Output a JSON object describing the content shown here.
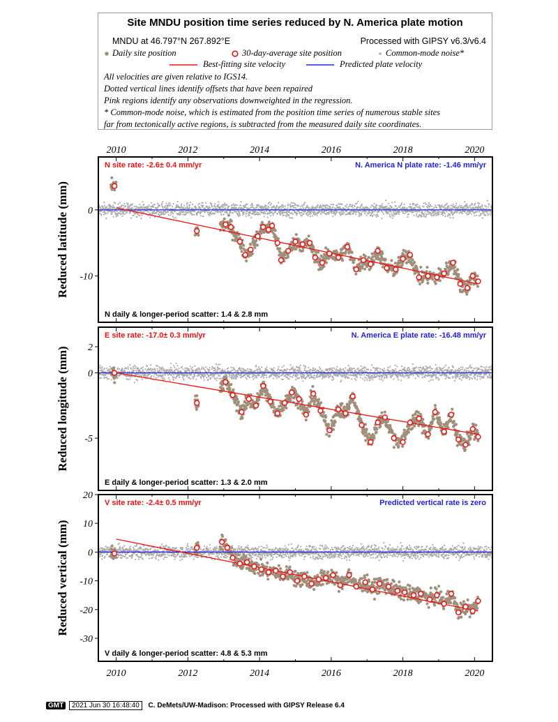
{
  "legend": {
    "title": "Site MNDU position time series reduced by N. America plate motion",
    "site_location": "MNDU at 46.797°N 267.892°E",
    "processing": "Processed with GIPSY v6.3/v6.4",
    "daily_label": "Daily site position",
    "avg_label": "30-day-average site position",
    "noise_label": "Common-mode noise*",
    "best_fit_label": "Best-fitting site velocity",
    "plate_label": "Predicted plate velocity",
    "notes": [
      "All velocities are given relative to IGS14.",
      "Dotted vertical lines identify offsets that have been repaired",
      "Pink regions identify any observations downweighted in the regression.",
      "* Common-mode noise, which is estimated from the position time series of numerous stable sites",
      "far from tectonically active regions, is subtracted from the measured daily site coordinates."
    ],
    "colors": {
      "daily": "#a08f7a",
      "avg": "#ee1111",
      "noise": "#aaaaaa",
      "fit": "#ee1111",
      "plate": "#2222dd"
    }
  },
  "footer": {
    "logo": "GMT",
    "date": "2021 Jun 30 16:48:40",
    "credit": "C. DeMets/UW-Madison: Processed with GIPSY Release 6.4"
  },
  "chart_data": [
    {
      "type": "scatter",
      "component": "N",
      "ylabel": "Reduced latitude (mm)",
      "xlim": [
        2009.5,
        2020.5
      ],
      "ylim": [
        -17,
        8
      ],
      "x_ticks": [
        "2010",
        "2012",
        "2014",
        "2016",
        "2018",
        "2020"
      ],
      "y_ticks": [
        0,
        -10
      ],
      "site_rate_text": "N site rate:  -2.6± 0.4 mm/yr",
      "plate_rate_text": "N. America N plate rate: -1.46 mm/yr",
      "scatter_text": "N daily & longer-period scatter:   1.4 &   2.8 mm",
      "best_fit_line": [
        [
          2010.0,
          0.3
        ],
        [
          2020.1,
          -11.2
        ]
      ],
      "plate_line_y": 0,
      "avg_points": [
        [
          2009.95,
          3.6
        ],
        [
          2012.25,
          -3.2
        ],
        [
          2013.05,
          -2.2
        ],
        [
          2013.2,
          -2.6
        ],
        [
          2013.45,
          -4.8
        ],
        [
          2013.6,
          -6.8
        ],
        [
          2013.75,
          -6.0
        ],
        [
          2013.95,
          -4.0
        ],
        [
          2014.1,
          -2.6
        ],
        [
          2014.25,
          -3.0
        ],
        [
          2014.35,
          -2.4
        ],
        [
          2014.5,
          -5.0
        ],
        [
          2014.6,
          -7.6
        ],
        [
          2014.8,
          -6.2
        ],
        [
          2015.0,
          -4.8
        ],
        [
          2015.2,
          -5.2
        ],
        [
          2015.4,
          -5.0
        ],
        [
          2015.55,
          -7.2
        ],
        [
          2015.75,
          -8.0
        ],
        [
          2015.95,
          -6.6
        ],
        [
          2016.2,
          -7.2
        ],
        [
          2016.45,
          -5.6
        ],
        [
          2016.7,
          -9.0
        ],
        [
          2016.9,
          -7.6
        ],
        [
          2017.1,
          -8.2
        ],
        [
          2017.3,
          -6.2
        ],
        [
          2017.55,
          -8.8
        ],
        [
          2017.8,
          -9.0
        ],
        [
          2018.0,
          -7.4
        ],
        [
          2018.2,
          -6.8
        ],
        [
          2018.45,
          -10.2
        ],
        [
          2018.7,
          -10.0
        ],
        [
          2018.95,
          -10.2
        ],
        [
          2019.15,
          -9.6
        ],
        [
          2019.4,
          -8.0
        ],
        [
          2019.6,
          -11.2
        ],
        [
          2019.8,
          -11.8
        ],
        [
          2019.95,
          -10.0
        ],
        [
          2020.1,
          -10.8
        ]
      ]
    },
    {
      "type": "scatter",
      "component": "E",
      "ylabel": "Reduced longitude (mm)",
      "xlim": [
        2009.5,
        2020.5
      ],
      "ylim": [
        -9,
        3.5
      ],
      "x_ticks": [
        "2010",
        "2012",
        "2014",
        "2016",
        "2018",
        "2020"
      ],
      "y_ticks": [
        2,
        0,
        -5
      ],
      "site_rate_text": "E site rate:  -17.0± 0.3 mm/yr",
      "plate_rate_text": "N. America E plate rate: -16.48 mm/yr",
      "scatter_text": "E daily & longer-period scatter:   1.3 &   2.0 mm",
      "best_fit_line": [
        [
          2010.0,
          0.0
        ],
        [
          2020.1,
          -4.7
        ]
      ],
      "plate_line_y": 0,
      "avg_points": [
        [
          2009.95,
          0.0
        ],
        [
          2012.25,
          -2.3
        ],
        [
          2013.05,
          -0.7
        ],
        [
          2013.25,
          -1.7
        ],
        [
          2013.5,
          -3.0
        ],
        [
          2013.7,
          -2.0
        ],
        [
          2013.9,
          -2.5
        ],
        [
          2014.1,
          -1.0
        ],
        [
          2014.3,
          -2.2
        ],
        [
          2014.5,
          -3.1
        ],
        [
          2014.7,
          -2.3
        ],
        [
          2014.9,
          -1.5
        ],
        [
          2015.1,
          -2.0
        ],
        [
          2015.3,
          -3.2
        ],
        [
          2015.5,
          -1.6
        ],
        [
          2015.7,
          -2.9
        ],
        [
          2015.95,
          -4.4
        ],
        [
          2016.2,
          -2.8
        ],
        [
          2016.4,
          -3.1
        ],
        [
          2016.6,
          -1.8
        ],
        [
          2016.85,
          -4.0
        ],
        [
          2017.1,
          -5.3
        ],
        [
          2017.3,
          -3.8
        ],
        [
          2017.5,
          -3.4
        ],
        [
          2017.75,
          -5.0
        ],
        [
          2018.0,
          -5.3
        ],
        [
          2018.2,
          -3.8
        ],
        [
          2018.45,
          -3.5
        ],
        [
          2018.7,
          -4.7
        ],
        [
          2018.9,
          -3.0
        ],
        [
          2019.15,
          -4.5
        ],
        [
          2019.35,
          -3.2
        ],
        [
          2019.55,
          -5.1
        ],
        [
          2019.75,
          -5.5
        ],
        [
          2019.95,
          -4.3
        ],
        [
          2020.1,
          -4.9
        ]
      ]
    },
    {
      "type": "scatter",
      "component": "V",
      "ylabel": "Reduced vertical (mm)",
      "xlim": [
        2009.5,
        2020.5
      ],
      "ylim": [
        -38,
        20
      ],
      "x_ticks": [
        "2010",
        "2012",
        "2014",
        "2016",
        "2018",
        "2020"
      ],
      "y_ticks": [
        20,
        10,
        0,
        -10,
        -20,
        -30
      ],
      "site_rate_text": "V site rate:  -2.4± 0.5 mm/yr",
      "plate_rate_text": "Predicted vertical rate is zero",
      "scatter_text": "V daily & longer-period scatter:   4.8 &   5.3 mm",
      "best_fit_line": [
        [
          2010.0,
          4.5
        ],
        [
          2020.1,
          -20.5
        ]
      ],
      "plate_line_y": 0,
      "avg_points": [
        [
          2009.95,
          -0.5
        ],
        [
          2012.25,
          1.5
        ],
        [
          2012.95,
          3.5
        ],
        [
          2013.1,
          1.5
        ],
        [
          2013.25,
          -2.0
        ],
        [
          2013.45,
          -4.0
        ],
        [
          2013.65,
          -3.5
        ],
        [
          2013.85,
          -5.0
        ],
        [
          2014.05,
          -6.0
        ],
        [
          2014.25,
          -7.0
        ],
        [
          2014.45,
          -6.5
        ],
        [
          2014.65,
          -8.5
        ],
        [
          2014.85,
          -7.0
        ],
        [
          2015.05,
          -10.0
        ],
        [
          2015.25,
          -8.5
        ],
        [
          2015.45,
          -11.0
        ],
        [
          2015.65,
          -9.5
        ],
        [
          2015.85,
          -9.0
        ],
        [
          2016.05,
          -8.0
        ],
        [
          2016.25,
          -11.5
        ],
        [
          2016.5,
          -8.0
        ],
        [
          2016.7,
          -12.0
        ],
        [
          2016.95,
          -10.5
        ],
        [
          2017.15,
          -13.0
        ],
        [
          2017.35,
          -11.0
        ],
        [
          2017.6,
          -12.0
        ],
        [
          2017.85,
          -13.5
        ],
        [
          2018.05,
          -14.0
        ],
        [
          2018.3,
          -15.0
        ],
        [
          2018.5,
          -14.5
        ],
        [
          2018.75,
          -16.5
        ],
        [
          2018.95,
          -15.0
        ],
        [
          2019.15,
          -18.0
        ],
        [
          2019.35,
          -14.5
        ],
        [
          2019.55,
          -21.0
        ],
        [
          2019.75,
          -19.0
        ],
        [
          2019.95,
          -20.5
        ],
        [
          2020.1,
          -17.0
        ]
      ]
    }
  ]
}
